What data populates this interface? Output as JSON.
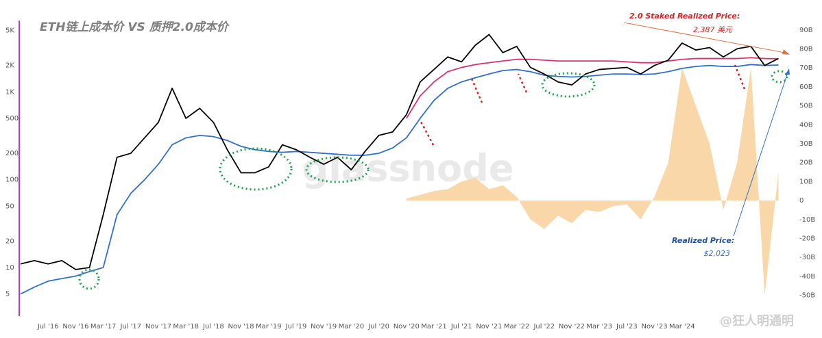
{
  "chart_data": {
    "type": "line",
    "title": "ETH链上成本价 VS 质押2.0成本价",
    "annotations": {
      "staked_label": "2.0 Staked Realized Price:",
      "staked_value": "2,387 美元",
      "realized_label": "Realized Price:",
      "realized_value": "$2,023",
      "watermark": "glassnode",
      "credit": "@狂人明通明"
    },
    "x": [
      null,
      null,
      "Jul '16",
      null,
      "Nov '16",
      null,
      "Mar '17",
      null,
      "Jul '17",
      null,
      "Nov '17",
      null,
      "Mar '18",
      null,
      "Jul '18",
      null,
      "Nov '18",
      null,
      "Mar '19",
      null,
      "Jul '19",
      null,
      "Nov '19",
      null,
      "Mar '20",
      null,
      "Jul '20",
      null,
      "Nov '20",
      null,
      "Mar '21",
      null,
      "Jul '21",
      null,
      "Nov '21",
      null,
      "Mar '22",
      null,
      "Jul '22",
      null,
      "Nov '22",
      null,
      "Mar '23",
      null,
      "Jul '23",
      null,
      "Nov '23",
      null,
      "Mar '24",
      null,
      null,
      null,
      null,
      null,
      null,
      null
    ],
    "log_scale": true,
    "ylim": [
      2.8,
      6500
    ],
    "yticks": [
      5,
      10,
      20,
      50,
      100,
      200,
      500,
      {
        "value": 1000,
        "label": "1K"
      },
      {
        "value": 2000,
        "label": "2K"
      },
      {
        "value": 5000,
        "label": "5K"
      }
    ],
    "y2lim": [
      -61,
      95
    ],
    "y2ticks": [
      {
        "value": -50,
        "label": "-50B"
      },
      {
        "value": -40,
        "label": "-40B"
      },
      {
        "value": -30,
        "label": "-30B"
      },
      {
        "value": -20,
        "label": "-20B"
      },
      {
        "value": -10,
        "label": "-10B"
      },
      0,
      {
        "value": 10,
        "label": "10B"
      },
      {
        "value": 20,
        "label": "20B"
      },
      {
        "value": 30,
        "label": "30B"
      },
      {
        "value": 40,
        "label": "40B"
      },
      {
        "value": 50,
        "label": "50B"
      },
      {
        "value": 60,
        "label": "60B"
      },
      {
        "value": 70,
        "label": "70B"
      },
      {
        "value": 80,
        "label": "80B"
      },
      {
        "value": 90,
        "label": "90B"
      }
    ],
    "series": [
      {
        "type": "area",
        "axis": "y2",
        "color": "#f9d7a8",
        "values": [
          null,
          null,
          null,
          null,
          null,
          null,
          null,
          null,
          null,
          null,
          null,
          null,
          null,
          null,
          null,
          null,
          null,
          null,
          null,
          null,
          null,
          null,
          null,
          null,
          null,
          null,
          null,
          null,
          1,
          3,
          5,
          6,
          10,
          12,
          6,
          8,
          2,
          -10,
          -15,
          -8,
          -12,
          -5,
          -6,
          -3,
          -2,
          -10,
          2,
          20,
          70,
          50,
          30,
          -5,
          20,
          70,
          -50,
          15
        ]
      },
      {
        "type": "line",
        "color": "#2f6fcf",
        "values": [
          5,
          6,
          7,
          7.5,
          8,
          9,
          10,
          40,
          70,
          100,
          150,
          250,
          300,
          320,
          310,
          280,
          240,
          220,
          210,
          205,
          210,
          205,
          200,
          195,
          190,
          190,
          200,
          230,
          300,
          500,
          800,
          1100,
          1300,
          1450,
          1600,
          1750,
          1800,
          1700,
          1550,
          1500,
          1480,
          1500,
          1550,
          1600,
          1600,
          1580,
          1600,
          1700,
          1850,
          1950,
          2000,
          1950,
          1950,
          2050,
          2000,
          2023
        ]
      },
      {
        "type": "line",
        "color": "#e0306a",
        "values": [
          null,
          null,
          null,
          null,
          null,
          null,
          null,
          null,
          null,
          null,
          null,
          null,
          null,
          null,
          null,
          null,
          null,
          null,
          null,
          null,
          null,
          null,
          null,
          null,
          null,
          null,
          null,
          null,
          500,
          900,
          1300,
          1700,
          1900,
          2050,
          2150,
          2250,
          2350,
          2350,
          2300,
          2250,
          2250,
          2250,
          2250,
          2250,
          2200,
          2150,
          2150,
          2250,
          2350,
          2400,
          2400,
          2400,
          2400,
          2450,
          2400,
          2387
        ]
      },
      {
        "type": "line",
        "color": "#000000",
        "values": [
          11,
          12,
          11,
          12,
          9.5,
          10,
          40,
          180,
          200,
          300,
          450,
          1100,
          500,
          650,
          450,
          220,
          120,
          120,
          140,
          250,
          220,
          180,
          150,
          180,
          130,
          210,
          320,
          350,
          550,
          1300,
          1800,
          2500,
          2200,
          3400,
          4500,
          2800,
          3300,
          1900,
          1600,
          1300,
          1200,
          1600,
          1800,
          1850,
          1900,
          1600,
          2000,
          2300,
          3600,
          3000,
          3200,
          2500,
          3100,
          3300,
          2000,
          2400
        ]
      }
    ]
  }
}
